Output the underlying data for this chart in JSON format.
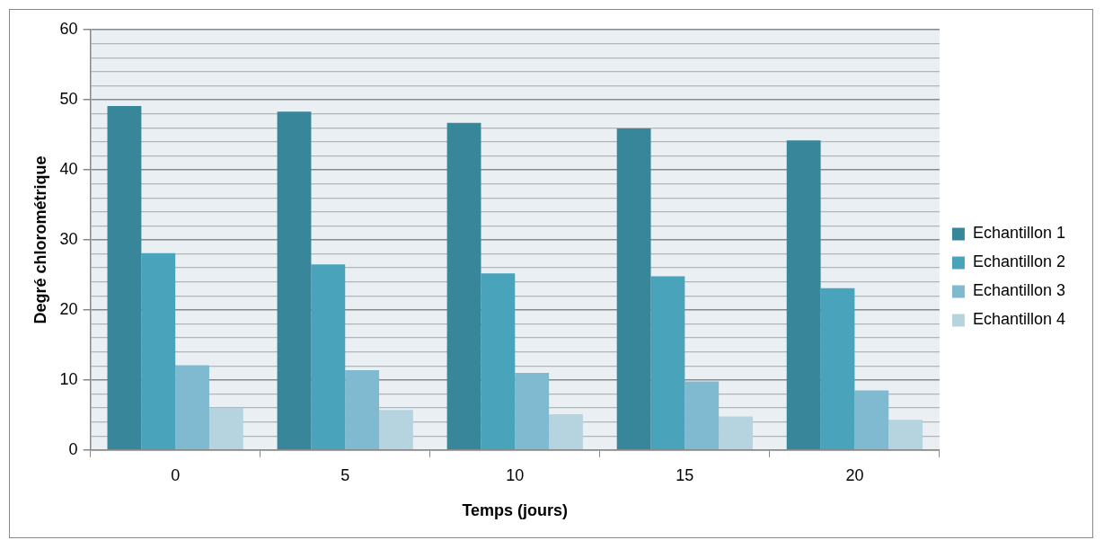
{
  "chart_data": {
    "type": "bar",
    "xlabel": "Temps (jours)",
    "ylabel": "Degré chlorométrique",
    "categories": [
      "0",
      "5",
      "10",
      "15",
      "20"
    ],
    "series": [
      {
        "name": "Echantillon 1",
        "color": "#38869a",
        "values": [
          49.1,
          48.3,
          46.7,
          45.9,
          44.2
        ]
      },
      {
        "name": "Echantillon 2",
        "color": "#48a3bb",
        "values": [
          28.1,
          26.5,
          25.2,
          24.8,
          23.1
        ]
      },
      {
        "name": "Echantillon 3",
        "color": "#7fbad0",
        "values": [
          12.1,
          11.4,
          11.0,
          9.8,
          8.5
        ]
      },
      {
        "name": "Echantillon 4",
        "color": "#b5d4e0",
        "values": [
          6.0,
          5.7,
          5.1,
          4.8,
          4.3
        ]
      }
    ],
    "ylim": [
      0,
      60
    ],
    "yticks": [
      0,
      {
        "value": 2,
        "label": null
      },
      {
        "value": 4,
        "label": null
      },
      {
        "value": 6,
        "label": null
      },
      {
        "value": 8,
        "label": null
      },
      10,
      {
        "value": 12,
        "label": null
      },
      {
        "value": 14,
        "label": null
      },
      {
        "value": 16,
        "label": null
      },
      {
        "value": 18,
        "label": null
      },
      20,
      {
        "value": 22,
        "label": null
      },
      {
        "value": 24,
        "label": null
      },
      {
        "value": 26,
        "label": null
      },
      {
        "value": 28,
        "label": null
      },
      30,
      {
        "value": 32,
        "label": null
      },
      {
        "value": 34,
        "label": null
      },
      {
        "value": 36,
        "label": null
      },
      {
        "value": 38,
        "label": null
      },
      40,
      {
        "value": 42,
        "label": null
      },
      {
        "value": 44,
        "label": null
      },
      {
        "value": 46,
        "label": null
      },
      {
        "value": 48,
        "label": null
      },
      50,
      {
        "value": 52,
        "label": null
      },
      {
        "value": 54,
        "label": null
      },
      {
        "value": 56,
        "label": null
      },
      {
        "value": 58,
        "label": null
      },
      60
    ],
    "grid": "y",
    "legend": "right"
  }
}
